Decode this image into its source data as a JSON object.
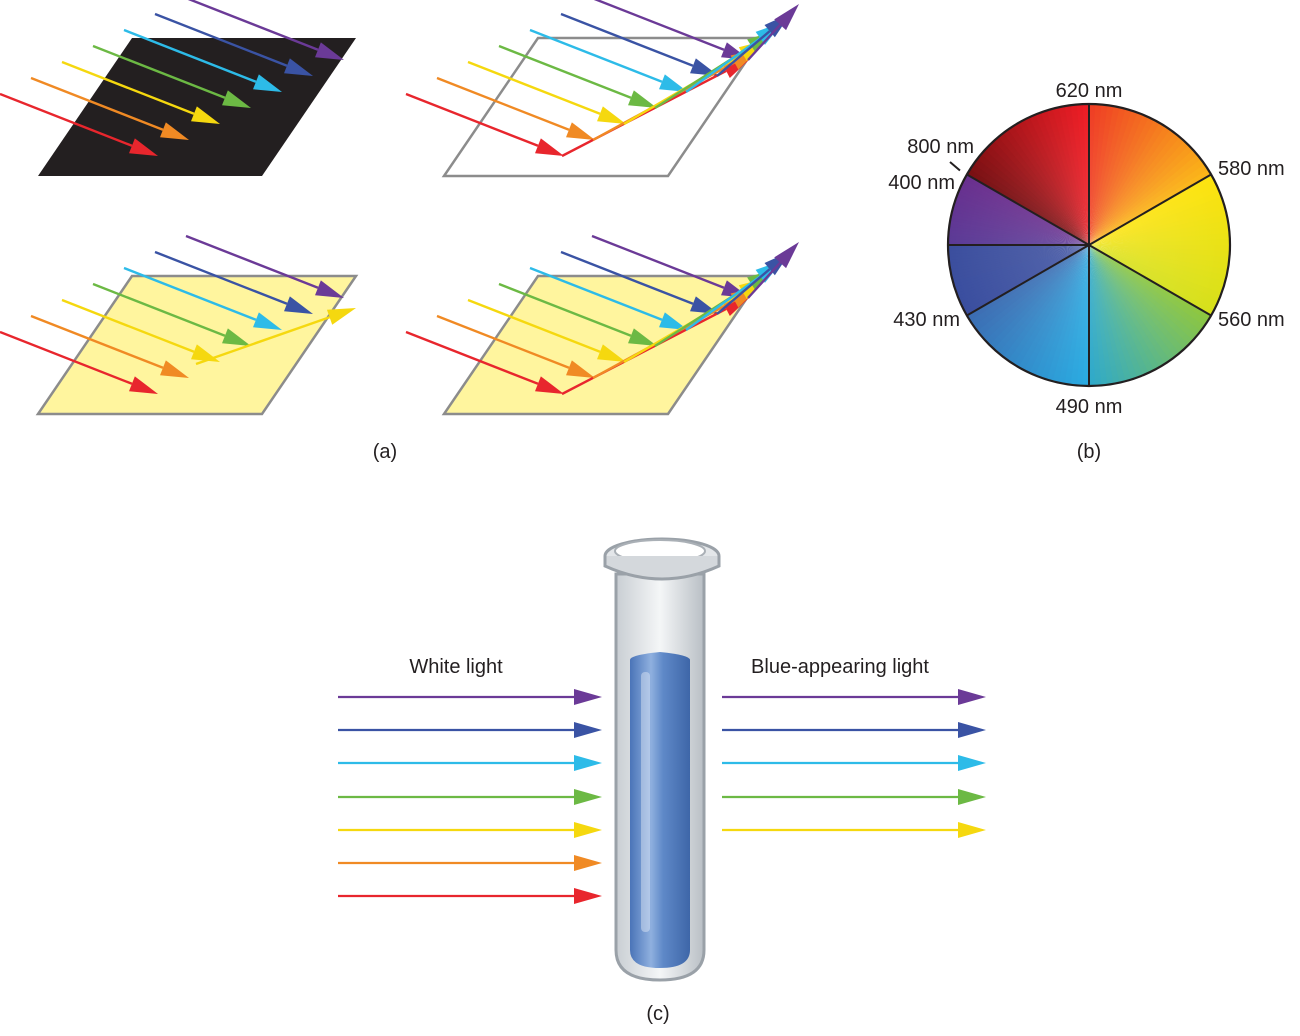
{
  "panel_a": {
    "caption": "(a)",
    "surfaces": [
      {
        "key": "black",
        "fill": "#231f20",
        "stroke": "none",
        "reflected": []
      },
      {
        "key": "white",
        "fill": "#ffffff",
        "stroke": "#8c8c8c",
        "reflected": [
          "red",
          "orange",
          "yellow",
          "green",
          "cyan",
          "blue",
          "violet"
        ]
      },
      {
        "key": "yellow",
        "fill": "#fff59e",
        "stroke": "#8c8c8c",
        "reflected": [
          "yellow"
        ]
      },
      {
        "key": "yellow-white",
        "fill": "#fff59e",
        "stroke": "#8c8c8c",
        "reflected": [
          "red",
          "orange",
          "yellow",
          "green",
          "cyan",
          "blue",
          "violet"
        ]
      }
    ]
  },
  "panel_b": {
    "caption": "(b)",
    "wavelength_labels": {
      "nm620": "620 nm",
      "nm580": "580 nm",
      "nm560": "560 nm",
      "nm490": "490 nm",
      "nm430": "430 nm",
      "nm400": "400 nm",
      "nm800": "800 nm"
    }
  },
  "panel_c": {
    "caption": "(c)",
    "incoming_label": "White light",
    "outgoing_label": "Blue-appearing light",
    "incoming_colors": [
      "violet",
      "blue",
      "cyan",
      "green",
      "yellow",
      "orange",
      "red"
    ],
    "outgoing_colors": [
      "violet",
      "blue",
      "cyan",
      "green",
      "yellow"
    ],
    "solution_color": "#5b86c5"
  },
  "colors": {
    "red": "#e8262d",
    "orange": "#f08a24",
    "yellow": "#f5d80f",
    "green": "#6cb944",
    "cyan": "#2dbbe8",
    "blue": "#3a53a4",
    "violet": "#6b3a97"
  }
}
